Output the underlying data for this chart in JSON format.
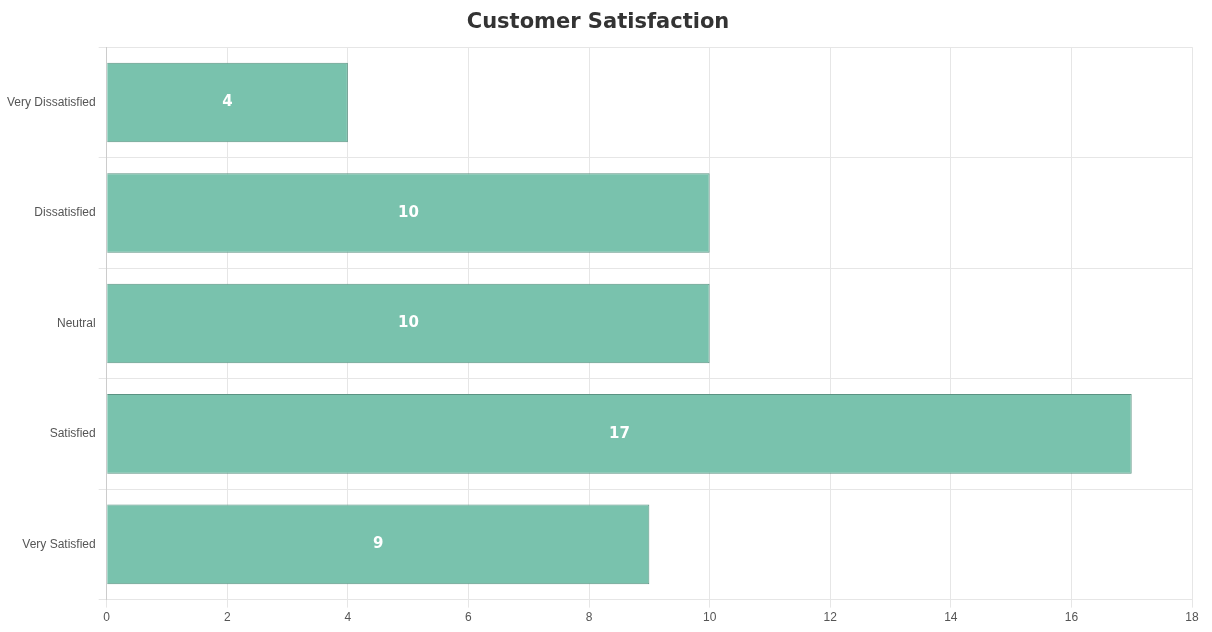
{
  "chart_data": {
    "type": "bar",
    "orientation": "horizontal",
    "title": "Customer Satisfaction",
    "categories": [
      "Very Dissatisfied",
      "Dissatisfied",
      "Neutral",
      "Satisfied",
      "Very Satisfied"
    ],
    "values": [
      4,
      10,
      10,
      17,
      9
    ],
    "color": "#79c2ad",
    "xlim": [
      0,
      18
    ],
    "xticks": [
      0,
      2,
      4,
      6,
      8,
      10,
      12,
      14,
      16,
      18
    ],
    "grid": true,
    "data_labels": true,
    "legend": false
  }
}
